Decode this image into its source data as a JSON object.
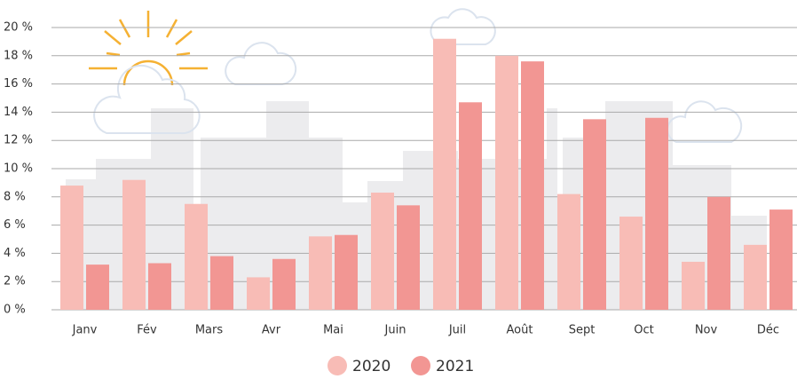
{
  "chart_data": {
    "type": "bar",
    "categories": [
      "Janv",
      "Fév",
      "Mars",
      "Avr",
      "Mai",
      "Juin",
      "Juil",
      "Août",
      "Sept",
      "Oct",
      "Nov",
      "Déc"
    ],
    "series": [
      {
        "name": "2020",
        "color": "#f8bcb6",
        "values": [
          8.8,
          9.2,
          7.5,
          2.3,
          5.2,
          8.3,
          19.2,
          18.0,
          8.2,
          6.6,
          3.4,
          4.6
        ]
      },
      {
        "name": "2021",
        "color": "#f29693",
        "values": [
          3.2,
          3.3,
          3.8,
          3.6,
          5.3,
          7.4,
          14.7,
          17.6,
          13.5,
          13.6,
          8.0,
          7.1
        ]
      }
    ],
    "ylim": [
      0,
      20
    ],
    "yticks": [
      {
        "value": 0,
        "label": "0 %"
      },
      {
        "value": 2,
        "label": "2 %"
      },
      {
        "value": 4,
        "label": "4 %"
      },
      {
        "value": 6,
        "label": "6 %"
      },
      {
        "value": 8,
        "label": "8 %"
      },
      {
        "value": 10,
        "label": "10 %"
      },
      {
        "value": 12,
        "label": "12 %"
      },
      {
        "value": 14,
        "label": "14 %"
      },
      {
        "value": 16,
        "label": "16 %"
      },
      {
        "value": 18,
        "label": "18 %"
      },
      {
        "value": 20,
        "label": "20 %"
      }
    ],
    "grid": true
  }
}
